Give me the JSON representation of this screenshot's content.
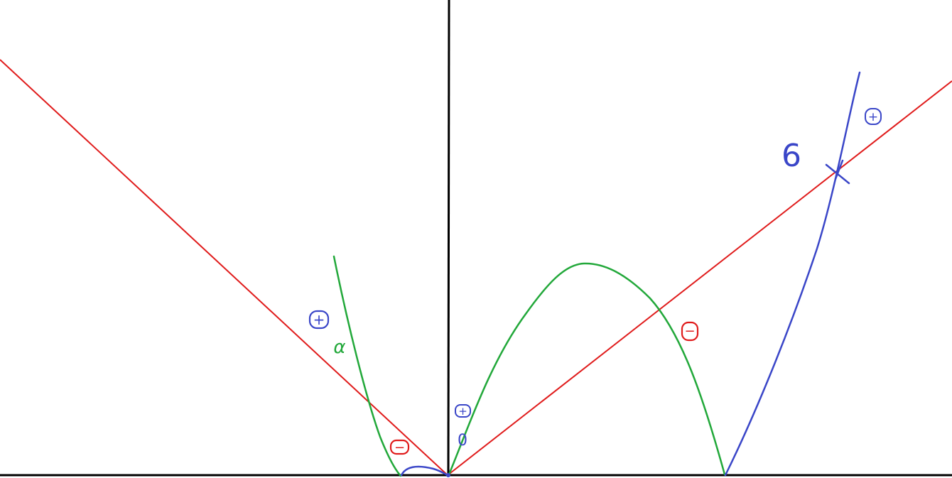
{
  "annotations": {
    "label_alpha": "α",
    "label_zero": "0",
    "label_six": "6",
    "sign_plus": "+",
    "sign_minus": "−"
  },
  "colors": {
    "axis": "#000000",
    "red_line": "#e01b1b",
    "green_curve": "#22a83a",
    "blue_curve": "#3a46c8",
    "background": "#ffffff"
  }
}
